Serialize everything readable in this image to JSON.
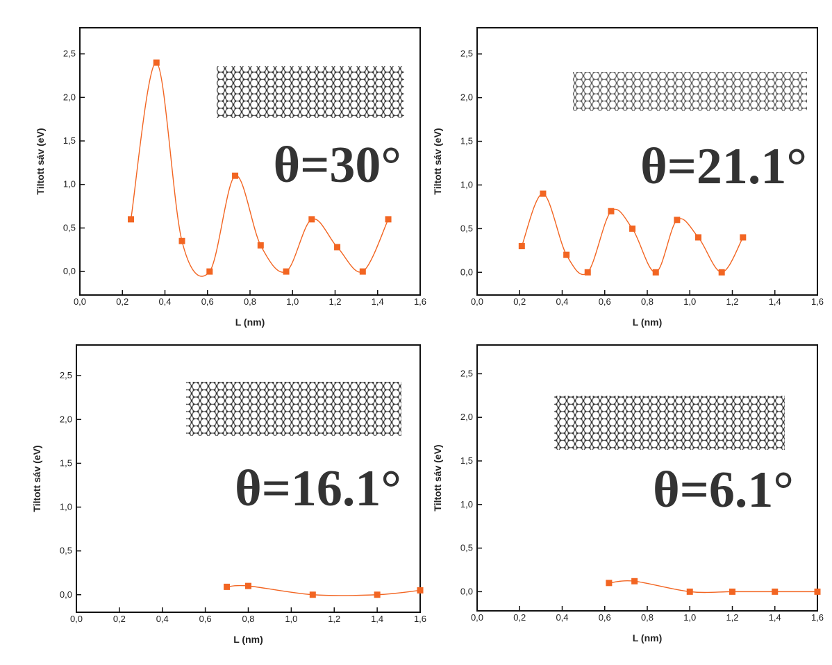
{
  "chart_data": [
    {
      "type": "line",
      "markers": true,
      "color": "#f26522",
      "annotation": "θ=30°",
      "xlabel": "L (nm)",
      "ylabel": "Tiltott sáv (eV)",
      "x": [
        0.24,
        0.36,
        0.48,
        0.61,
        0.73,
        0.85,
        0.97,
        1.09,
        1.21,
        1.33,
        1.45
      ],
      "values": [
        0.6,
        2.4,
        0.35,
        0,
        1.1,
        0.3,
        0,
        0.6,
        0.28,
        0,
        0.6
      ],
      "xlim": [
        0,
        1.6
      ],
      "ylim": [
        -0.27,
        2.8
      ],
      "xticks": [
        {
          "value": 0,
          "label": "0,0"
        },
        {
          "value": 0.2,
          "label": "0,2"
        },
        {
          "value": 0.4,
          "label": "0,4"
        },
        {
          "value": 0.6,
          "label": "0,6"
        },
        {
          "value": 0.8,
          "label": "0,8"
        },
        {
          "value": 1.0,
          "label": "1,0"
        },
        {
          "value": 1.2,
          "label": "1,2"
        },
        {
          "value": 1.4,
          "label": "1,4"
        },
        {
          "value": 1.6,
          "label": "1,6"
        }
      ],
      "yticks": [
        {
          "value": 0,
          "label": "0,0"
        },
        {
          "value": 0.5,
          "label": "0,5"
        },
        {
          "value": 1.0,
          "label": "1,0"
        },
        {
          "value": 1.5,
          "label": "1,5"
        },
        {
          "value": 2.0,
          "label": "2,0"
        },
        {
          "value": 2.5,
          "label": "2,5"
        }
      ]
    },
    {
      "type": "line",
      "markers": true,
      "color": "#f26522",
      "annotation": "θ=21.1°",
      "xlabel": "L (nm)",
      "ylabel": "Tiltott sáv (eV)",
      "x": [
        0.21,
        0.31,
        0.42,
        0.52,
        0.63,
        0.73,
        0.84,
        0.94,
        1.04,
        1.15,
        1.25
      ],
      "values": [
        0.3,
        0.9,
        0.2,
        0,
        0.7,
        0.5,
        0,
        0.6,
        0.4,
        0,
        0.4
      ],
      "xlim": [
        0,
        1.6
      ],
      "ylim": [
        -0.26,
        2.8
      ],
      "xticks": [
        {
          "value": 0,
          "label": "0,0"
        },
        {
          "value": 0.2,
          "label": "0,2"
        },
        {
          "value": 0.4,
          "label": "0,4"
        },
        {
          "value": 0.6,
          "label": "0,6"
        },
        {
          "value": 0.8,
          "label": "0,8"
        },
        {
          "value": 1.0,
          "label": "1,0"
        },
        {
          "value": 1.2,
          "label": "1,2"
        },
        {
          "value": 1.4,
          "label": "1,4"
        },
        {
          "value": 1.6,
          "label": "1,6"
        }
      ],
      "yticks": [
        {
          "value": 0,
          "label": "0,0"
        },
        {
          "value": 0.5,
          "label": "0,5"
        },
        {
          "value": 1.0,
          "label": "1,0"
        },
        {
          "value": 1.5,
          "label": "1,5"
        },
        {
          "value": 2.0,
          "label": "2,0"
        },
        {
          "value": 2.5,
          "label": "2,5"
        }
      ]
    },
    {
      "type": "line",
      "markers": true,
      "color": "#f26522",
      "annotation": "θ=16.1°",
      "xlabel": "L (nm)",
      "ylabel": "Tiltott sáv (eV)",
      "x": [
        0.7,
        0.8,
        1.1,
        1.4,
        1.6
      ],
      "values": [
        0.09,
        0.1,
        0,
        0,
        0.05
      ],
      "xlim": [
        0,
        1.6
      ],
      "ylim": [
        -0.2,
        2.85
      ],
      "xticks": [
        {
          "value": 0,
          "label": "0,0"
        },
        {
          "value": 0.2,
          "label": "0,2"
        },
        {
          "value": 0.4,
          "label": "0,4"
        },
        {
          "value": 0.6,
          "label": "0,6"
        },
        {
          "value": 0.8,
          "label": "0,8"
        },
        {
          "value": 1.0,
          "label": "1,0"
        },
        {
          "value": 1.2,
          "label": "1,2"
        },
        {
          "value": 1.4,
          "label": "1,4"
        },
        {
          "value": 1.6,
          "label": "1,6"
        }
      ],
      "yticks": [
        {
          "value": 0,
          "label": "0,0"
        },
        {
          "value": 0.5,
          "label": "0,5"
        },
        {
          "value": 1.0,
          "label": "1,0"
        },
        {
          "value": 1.5,
          "label": "1,5"
        },
        {
          "value": 2.0,
          "label": "2,0"
        },
        {
          "value": 2.5,
          "label": "2,5"
        }
      ]
    },
    {
      "type": "line",
      "markers": true,
      "color": "#f26522",
      "annotation": "θ=6.1°",
      "xlabel": "L (nm)",
      "ylabel": "Tiltott sáv (eV)",
      "x": [
        0.62,
        0.74,
        1.0,
        1.2,
        1.4,
        1.6
      ],
      "values": [
        0.1,
        0.12,
        0,
        0,
        0,
        0
      ],
      "xlim": [
        0,
        1.6
      ],
      "ylim": [
        -0.22,
        2.83
      ],
      "xticks": [
        {
          "value": 0,
          "label": "0,0"
        },
        {
          "value": 0.2,
          "label": "0,2"
        },
        {
          "value": 0.4,
          "label": "0,4"
        },
        {
          "value": 0.6,
          "label": "0,6"
        },
        {
          "value": 0.8,
          "label": "0,8"
        },
        {
          "value": 1.0,
          "label": "1,0"
        },
        {
          "value": 1.2,
          "label": "1,2"
        },
        {
          "value": 1.4,
          "label": "1,4"
        },
        {
          "value": 1.6,
          "label": "1,6"
        }
      ],
      "yticks": [
        {
          "value": 0,
          "label": "0,0"
        },
        {
          "value": 0.5,
          "label": "0,5"
        },
        {
          "value": 1.0,
          "label": "1,0"
        },
        {
          "value": 1.5,
          "label": "1,5"
        },
        {
          "value": 2.0,
          "label": "2,0"
        },
        {
          "value": 2.5,
          "label": "2,5"
        }
      ]
    }
  ]
}
